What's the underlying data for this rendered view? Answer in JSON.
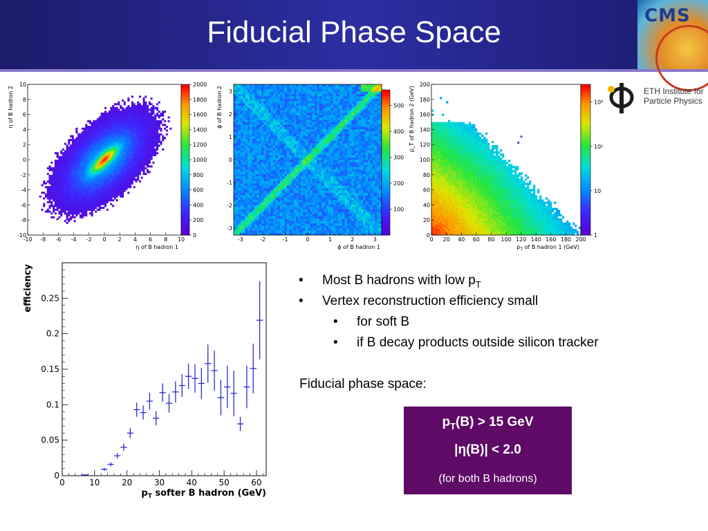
{
  "slide": {
    "title": "Fiducial Phase Space",
    "logo_text": "CMS",
    "eth_logo": {
      "line1": "ETH Institute for",
      "line2": "Particle Physics"
    }
  },
  "bullets": [
    {
      "level": 1,
      "text": "Most B hadrons with low p",
      "sub": "T"
    },
    {
      "level": 1,
      "text": "Vertex reconstruction efficiency small",
      "sub": ""
    },
    {
      "level": 2,
      "text": "for soft B",
      "sub": ""
    },
    {
      "level": 2,
      "text": "if B decay products outside silicon tracker",
      "sub": ""
    }
  ],
  "fiducial": {
    "heading": "Fiducial phase space:",
    "line1_prefix": "p",
    "line1_sub": "T",
    "line1_rest": "(B) > 15 GeV",
    "line2": "|η(B)| < 2.0",
    "line3": "(for both B hadrons)"
  },
  "chart_data": [
    {
      "type": "heatmap",
      "xlabel": "η of B hadron 1",
      "ylabel": "η of B hadron 2",
      "xlim": [
        -10,
        10
      ],
      "ylim": [
        -10,
        10
      ],
      "xticks": [
        "-10",
        "-8",
        "-6",
        "-4",
        "-2",
        "0",
        "2",
        "4",
        "6",
        "8",
        "10"
      ],
      "yticks": [
        "-10",
        "-8",
        "-6",
        "-4",
        "-2",
        "0",
        "2",
        "4",
        "6",
        "8",
        "10"
      ],
      "colorbar_ticks": [
        "0",
        "200",
        "400",
        "600",
        "800",
        "1000",
        "1200",
        "1400",
        "1600",
        "1800",
        "2000"
      ],
      "colorbar_range": [
        0,
        2000
      ]
    },
    {
      "type": "heatmap",
      "xlabel": "ϕ of B hadron 1",
      "ylabel": "ϕ of B hadron 2",
      "xlim": [
        -3.3,
        3.3
      ],
      "ylim": [
        -3.3,
        3.3
      ],
      "xticks": [
        "-3",
        "-2",
        "-1",
        "0",
        "1",
        "2",
        "3"
      ],
      "yticks": [
        "-3",
        "-2",
        "-1",
        "0",
        "1",
        "2",
        "3"
      ],
      "colorbar_ticks": [
        "100",
        "200",
        "300",
        "400",
        "500"
      ],
      "colorbar_range": [
        0,
        560
      ]
    },
    {
      "type": "heatmap",
      "xlabel_main": "p",
      "xlabel_sub": "T",
      "xlabel_rest": " of B hadron 1 (GeV)",
      "ylabel": "p_T of B hadron 2 (GeV)",
      "xlim": [
        0,
        200
      ],
      "ylim": [
        0,
        200
      ],
      "xticks": [
        "0",
        "20",
        "40",
        "60",
        "80",
        "100",
        "120",
        "140",
        "160",
        "180",
        "200"
      ],
      "yticks": [
        "0",
        "20",
        "40",
        "60",
        "80",
        "100",
        "120",
        "140",
        "160",
        "180",
        "200"
      ],
      "colorbar_ticks": [
        "1",
        "10",
        "10²",
        "10³"
      ],
      "colorbar_scale": "log"
    },
    {
      "type": "scatter",
      "xlabel_main": "p",
      "xlabel_sub": "T",
      "xlabel_rest": " softer B hadron (GeV)",
      "ylabel": "efficiency",
      "xlim": [
        0,
        63
      ],
      "ylim": [
        0,
        0.3
      ],
      "xticks": [
        "0",
        "10",
        "20",
        "30",
        "40",
        "50",
        "60"
      ],
      "yticks": [
        "0",
        "0.05",
        "0.1",
        "0.15",
        "0.2",
        "0.25"
      ],
      "x": [
        7,
        13,
        15,
        17,
        19,
        21,
        23,
        25,
        27,
        29,
        31,
        33,
        35,
        37,
        39,
        41,
        43,
        45,
        47,
        49,
        51,
        53,
        55,
        57,
        59,
        61
      ],
      "y": [
        0.001,
        0.009,
        0.016,
        0.028,
        0.04,
        0.06,
        0.093,
        0.089,
        0.105,
        0.081,
        0.117,
        0.102,
        0.118,
        0.127,
        0.14,
        0.137,
        0.13,
        0.158,
        0.148,
        0.11,
        0.125,
        0.116,
        0.073,
        0.125,
        0.151,
        0.219
      ],
      "yerr": [
        0.001,
        0.002,
        0.003,
        0.004,
        0.005,
        0.007,
        0.01,
        0.01,
        0.012,
        0.01,
        0.013,
        0.013,
        0.015,
        0.016,
        0.018,
        0.02,
        0.022,
        0.027,
        0.028,
        0.025,
        0.03,
        0.032,
        0.01,
        0.03,
        0.035,
        0.055
      ],
      "color": "#2a2ad0"
    }
  ]
}
